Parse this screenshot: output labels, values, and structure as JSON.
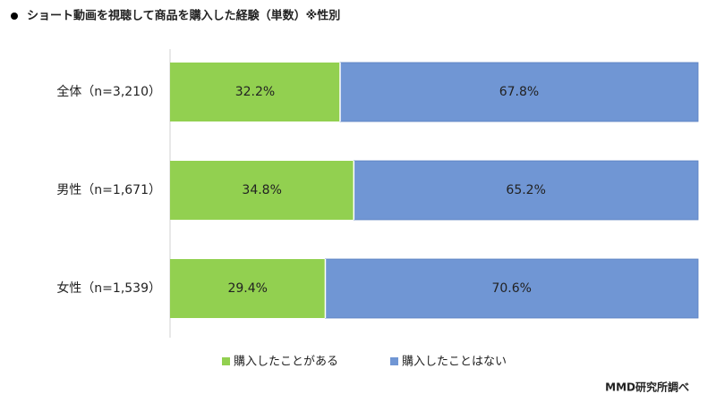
{
  "chart_data": {
    "type": "stacked-bar-horizontal",
    "title": "ショート動画を視聴して商品を購入した経験（単数）※性別",
    "source": "MMD研究所調べ",
    "categories": [
      "全体（n=3,210）",
      "男性（n=1,671）",
      "女性（n=1,539）"
    ],
    "xlim": [
      0,
      100
    ],
    "series": [
      {
        "name": "購入したことがある",
        "color": "#92d050",
        "values": [
          32.2,
          34.8,
          29.4
        ],
        "value_labels": [
          "32.2%",
          "34.8%",
          "29.4%"
        ]
      },
      {
        "name": "購入したことはない",
        "color": "#7096d4",
        "values": [
          67.8,
          65.2,
          70.6
        ],
        "value_labels": [
          "67.8%",
          "65.2%",
          "70.6%"
        ]
      }
    ],
    "legend": "bottom"
  }
}
